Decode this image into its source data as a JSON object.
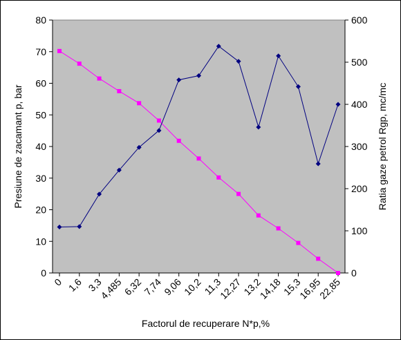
{
  "chart_data": {
    "type": "line",
    "xlabel": "Factorul de recuperare N*p,%",
    "ylabel": "Presiune de zacamant p, bar",
    "y2label": "Ratia gaze petrol Rgp, mc/mc",
    "categories": [
      "0",
      "1,6",
      "3,3",
      "4,485",
      "6,32",
      "7,74",
      "9,06",
      "10,2",
      "11,3",
      "12,27",
      "13,2",
      "14,18",
      "15,3",
      "16,95",
      "22,85"
    ],
    "ylim": [
      0,
      80
    ],
    "y2lim": [
      0,
      600
    ],
    "yticks": [
      "0",
      "10",
      "20",
      "30",
      "40",
      "50",
      "60",
      "70",
      "80"
    ],
    "y2ticks": [
      "0",
      "100",
      "200",
      "300",
      "400",
      "500",
      "600"
    ],
    "grid": false,
    "plot_background": "#c0c0c0",
    "legend": "none",
    "series": [
      {
        "axis": "left",
        "color": "#ff00ff",
        "marker": "square",
        "values": [
          70.2,
          66.2,
          61.5,
          57.5,
          53.7,
          48.2,
          41.8,
          36.2,
          30.2,
          25.0,
          18.2,
          14.1,
          9.5,
          4.5,
          0.0
        ]
      },
      {
        "axis": "right",
        "color": "#000080",
        "marker": "diamond",
        "values": [
          109,
          110,
          187,
          244,
          298,
          338,
          458,
          468,
          538,
          502,
          346,
          515,
          442,
          259,
          400
        ]
      }
    ]
  }
}
